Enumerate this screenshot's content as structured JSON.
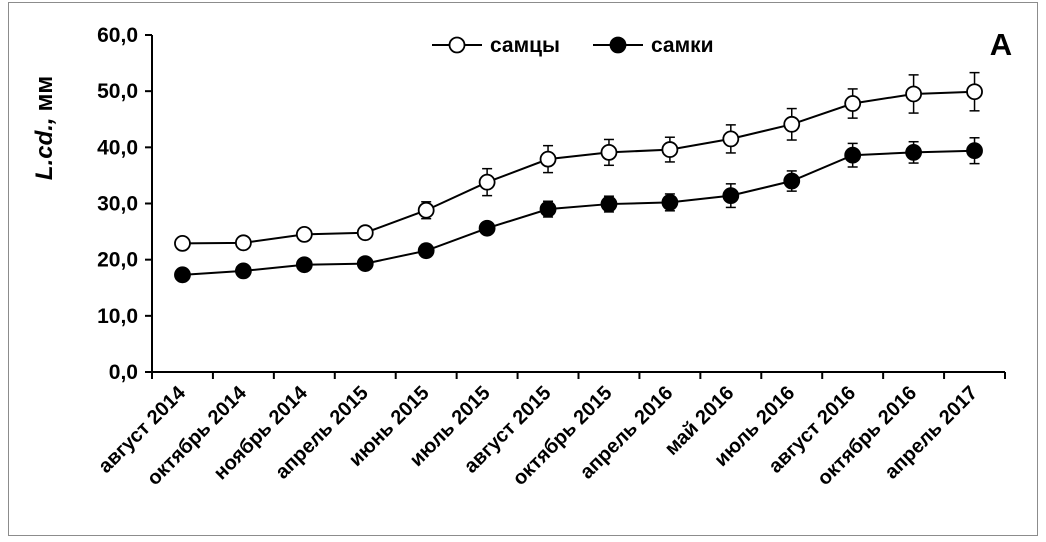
{
  "chart_data": {
    "type": "line",
    "panel_label": "A",
    "ylabel_italic": "L.cd.,",
    "ylabel_unit": "мм",
    "ylim": [
      0,
      60
    ],
    "yticks": [
      "0,0",
      "10,0",
      "20,0",
      "30,0",
      "40,0",
      "50,0",
      "60,0"
    ],
    "legend_position": "top-center",
    "categories": [
      "август 2014",
      "октябрь 2014",
      "ноябрь 2014",
      "апрель 2015",
      "июнь 2015",
      "июль 2015",
      "август 2015",
      "октябрь 2015",
      "апрель 2016",
      "май 2016",
      "июль 2016",
      "август 2016",
      "октябрь 2016",
      "апрель 2017"
    ],
    "series": [
      {
        "name": "самцы",
        "marker": "open-circle",
        "values": [
          22.9,
          23.0,
          24.5,
          24.8,
          28.8,
          33.8,
          37.9,
          39.1,
          39.6,
          41.5,
          44.1,
          47.8,
          49.5,
          49.9
        ],
        "errors": [
          0.8,
          0.8,
          0.9,
          1.0,
          1.5,
          2.4,
          2.4,
          2.3,
          2.2,
          2.5,
          2.8,
          2.6,
          3.4,
          3.4
        ]
      },
      {
        "name": "самки",
        "marker": "filled-circle",
        "values": [
          17.3,
          18.0,
          19.1,
          19.3,
          21.6,
          25.6,
          29.0,
          29.9,
          30.2,
          31.4,
          34.0,
          38.6,
          39.1,
          39.4
        ],
        "errors": [
          0.6,
          0.6,
          0.7,
          0.7,
          1.1,
          1.0,
          1.4,
          1.4,
          1.5,
          2.1,
          1.8,
          2.1,
          1.9,
          2.3
        ]
      }
    ]
  }
}
